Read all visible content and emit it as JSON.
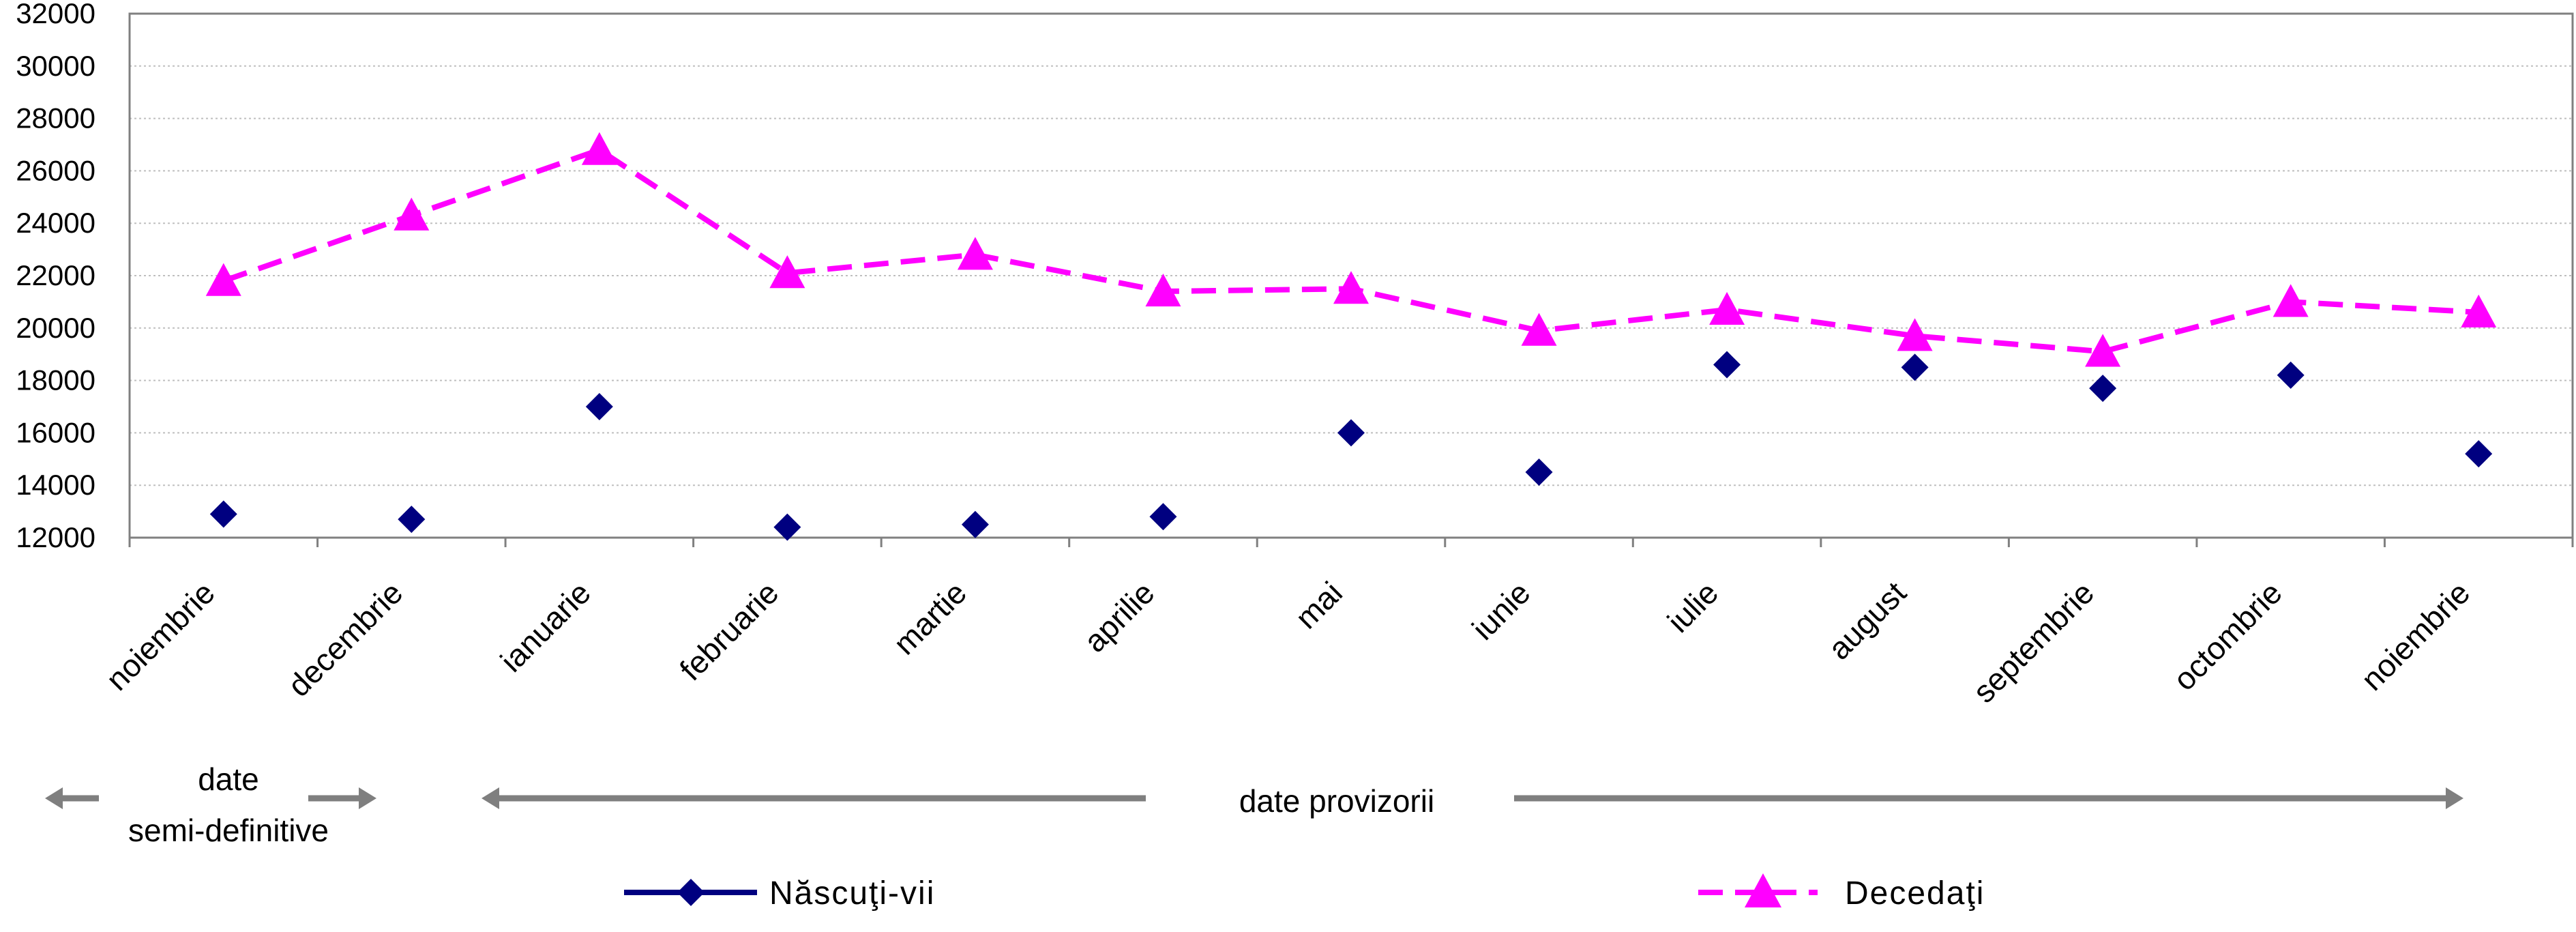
{
  "colors": {
    "births": "#000080",
    "deaths": "#FF00FF",
    "gridline": "#BFBFBF",
    "axis": "#808080",
    "arrows": "#7F7F7F"
  },
  "chart_data": {
    "type": "line",
    "title": "",
    "xlabel": "",
    "ylabel": "",
    "ylim": [
      12000,
      32000
    ],
    "y_ticks": [
      "12000",
      "14000",
      "16000",
      "18000",
      "20000",
      "22000",
      "24000",
      "26000",
      "28000",
      "30000",
      "32000"
    ],
    "grid": true,
    "legend_position": "bottom",
    "categories": [
      "noiembrie",
      "decembrie",
      "ianuarie",
      "februarie",
      "martie",
      "aprilie",
      "mai",
      "iunie",
      "iulie",
      "august",
      "septembrie",
      "octombrie",
      "noiembrie"
    ],
    "series": [
      {
        "name": "Născuţi-vii",
        "marker": "diamond-icon",
        "line": "none",
        "values": [
          12900,
          12700,
          17000,
          12400,
          12500,
          12800,
          16000,
          14500,
          18600,
          18500,
          17700,
          18200,
          15200
        ]
      },
      {
        "name": "Decedaţi",
        "marker": "triangle-icon",
        "line": "dashed",
        "values": [
          21800,
          24300,
          26800,
          22100,
          22800,
          21400,
          21500,
          19900,
          20700,
          19700,
          19100,
          21000,
          20600
        ]
      }
    ],
    "period_annotations": [
      {
        "label_lines": [
          "date",
          "semi-definitive"
        ]
      },
      {
        "label_lines": [
          "date provizorii"
        ]
      }
    ]
  }
}
